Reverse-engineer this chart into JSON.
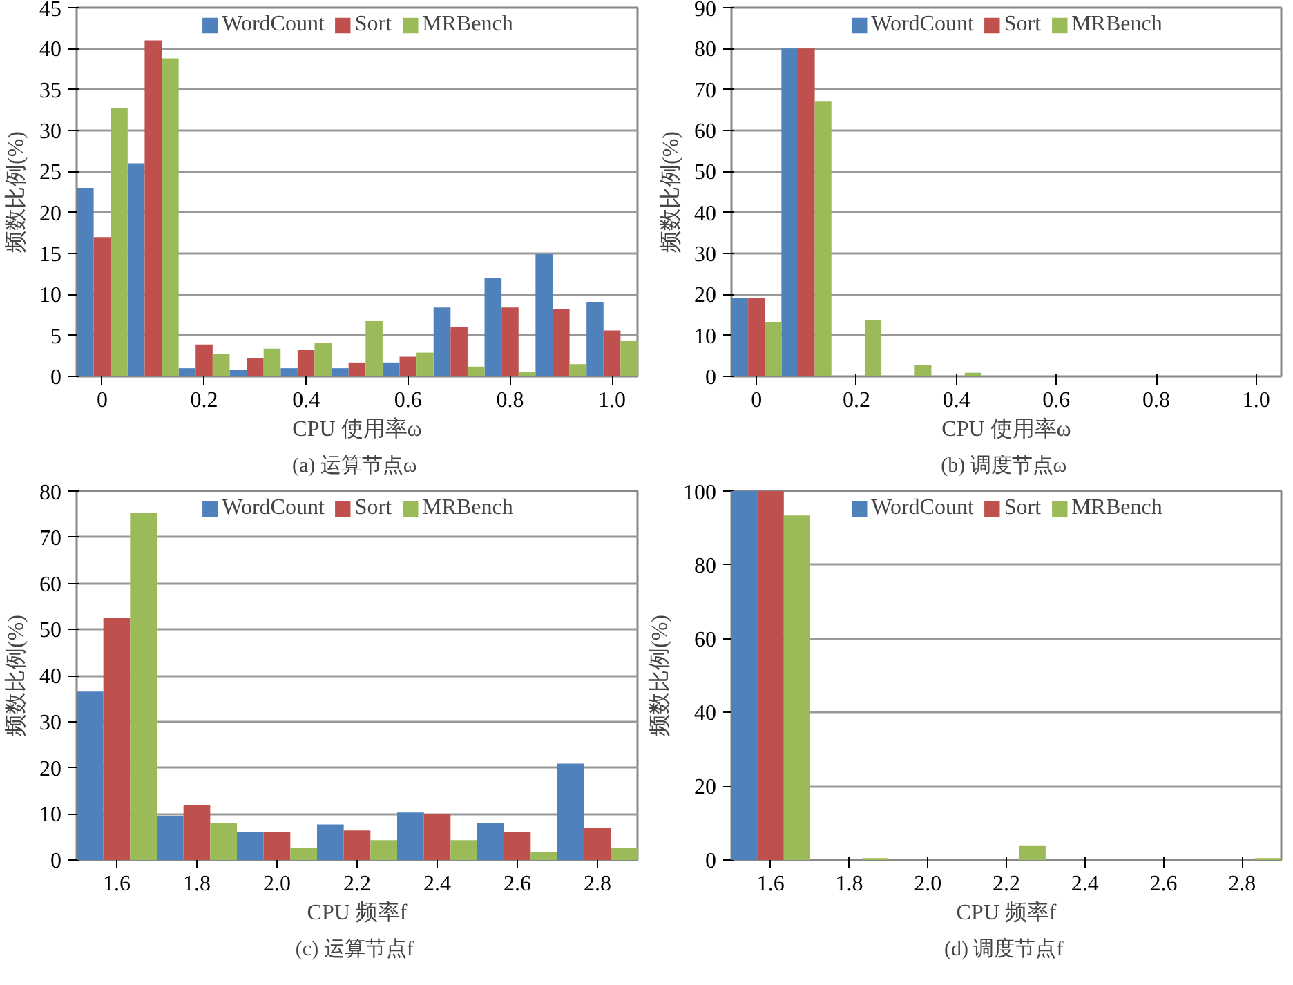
{
  "chart_data": [
    {
      "type": "bar",
      "title": "(a)  运算节点ω",
      "xlabel": "CPU 使用率ω",
      "ylabel": "频数比例(%)",
      "x": [
        0,
        0.1,
        0.2,
        0.3,
        0.4,
        0.5,
        0.6,
        0.7,
        0.8,
        0.9,
        1.0
      ],
      "xlim": [
        -0.05,
        1.05
      ],
      "xticks": [
        0,
        0.2,
        0.4,
        0.6,
        0.8,
        {
          "value": 1.0,
          "label": "1.0"
        }
      ],
      "ylim": [
        0,
        45
      ],
      "yticks": [
        0,
        5,
        10,
        15,
        20,
        25,
        30,
        35,
        40,
        45
      ],
      "grid": "y",
      "legend": "top",
      "series": [
        {
          "name": "WordCount",
          "color": "#4f81bd",
          "values": [
            23,
            26,
            1,
            0.8,
            1,
            1,
            1.7,
            8.4,
            12,
            15,
            9.1
          ]
        },
        {
          "name": "Sort",
          "color": "#c0504d",
          "values": [
            17,
            41,
            3.9,
            2.2,
            3.2,
            1.7,
            2.4,
            6,
            8.4,
            8.2,
            5.6
          ]
        },
        {
          "name": "MRBench",
          "color": "#9bbb59",
          "values": [
            32.7,
            38.8,
            2.7,
            3.4,
            4.1,
            6.8,
            2.9,
            1.2,
            0.5,
            1.5,
            4.3
          ]
        }
      ]
    },
    {
      "type": "bar",
      "title": "(b)  调度节点ω",
      "xlabel": "CPU 使用率ω",
      "ylabel": "频数比例(%)",
      "x": [
        0,
        0.1,
        0.2,
        0.3,
        0.4,
        0.5,
        0.6,
        0.7,
        0.8,
        0.9,
        1.0
      ],
      "xlim": [
        -0.05,
        1.05
      ],
      "xticks": [
        0,
        0.2,
        0.4,
        0.6,
        0.8,
        {
          "value": 1.0,
          "label": "1.0"
        }
      ],
      "ylim": [
        0,
        90
      ],
      "yticks": [
        0,
        10,
        20,
        30,
        40,
        50,
        60,
        70,
        80,
        90
      ],
      "grid": "y",
      "legend": "top",
      "series": [
        {
          "name": "WordCount",
          "color": "#4f81bd",
          "values": [
            19.2,
            80,
            0,
            0,
            0,
            0,
            0,
            0,
            0,
            0,
            0
          ]
        },
        {
          "name": "Sort",
          "color": "#c0504d",
          "values": [
            19.2,
            80,
            0,
            0,
            0,
            0,
            0,
            0,
            0,
            0,
            0
          ]
        },
        {
          "name": "MRBench",
          "color": "#9bbb59",
          "values": [
            13.3,
            67.2,
            13.8,
            2.8,
            0.9,
            0,
            0,
            0,
            0,
            0,
            0
          ]
        }
      ]
    },
    {
      "type": "bar",
      "title": "(c)  运算节点f",
      "xlabel": "CPU 频率f",
      "ylabel": "频数比例(%)",
      "categories": [
        "1.6",
        "1.8",
        "2.0",
        "2.2",
        "2.4",
        "2.6",
        "2.8"
      ],
      "ylim": [
        0,
        80
      ],
      "yticks": [
        0,
        10,
        20,
        30,
        40,
        50,
        60,
        70,
        80
      ],
      "grid": "y",
      "legend": "top",
      "series": [
        {
          "name": "WordCount",
          "color": "#4f81bd",
          "values": [
            36.5,
            9.5,
            6,
            7.7,
            10.3,
            8.1,
            20.9
          ]
        },
        {
          "name": "Sort",
          "color": "#c0504d",
          "values": [
            52.6,
            11.9,
            6,
            6.4,
            9.9,
            6,
            6.9
          ]
        },
        {
          "name": "MRBench",
          "color": "#9bbb59",
          "values": [
            75.2,
            8.1,
            2.6,
            4.3,
            4.3,
            1.8,
            2.7
          ]
        }
      ]
    },
    {
      "type": "bar",
      "title": "(d)  调度节点f",
      "xlabel": "CPU 频率f",
      "ylabel": "频数比例(%)",
      "categories": [
        "1.6",
        "1.8",
        "2.0",
        "2.2",
        "2.4",
        "2.6",
        "2.8"
      ],
      "ylim": [
        0,
        100
      ],
      "yticks": [
        0,
        20,
        40,
        60,
        80,
        100
      ],
      "grid": "y",
      "legend": "top",
      "series": [
        {
          "name": "WordCount",
          "color": "#4f81bd",
          "values": [
            100,
            0,
            0,
            0,
            0,
            0,
            0
          ]
        },
        {
          "name": "Sort",
          "color": "#c0504d",
          "values": [
            100,
            0,
            0,
            0,
            0,
            0,
            0
          ]
        },
        {
          "name": "MRBench",
          "color": "#9bbb59",
          "values": [
            93.4,
            0.5,
            0,
            3.8,
            0,
            0,
            0.5
          ]
        }
      ]
    }
  ]
}
